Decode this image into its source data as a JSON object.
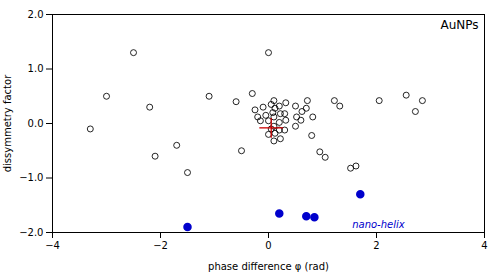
{
  "chart_data": {
    "type": "scatter",
    "title": "AuNPs",
    "x_label": "phase difference φ (rad)",
    "y_label": "dissymmetry factor",
    "xlim": [
      -4,
      4
    ],
    "ylim": [
      -2,
      2
    ],
    "xticks": [
      -4,
      -2,
      0,
      2,
      4
    ],
    "yticks": [
      -2,
      -1,
      0,
      1,
      2
    ],
    "grid": false,
    "series": [
      {
        "color": "#000000",
        "marker": "circle_open",
        "x": [
          -3.3,
          -3.0,
          -2.5,
          -2.2,
          -2.1,
          -1.7,
          -1.5,
          -1.1,
          -0.6,
          -0.5,
          -0.3,
          -0.25,
          -0.2,
          -0.15,
          -0.1,
          -0.05,
          0.0,
          0.0,
          0.05,
          0.08,
          0.05,
          0.0,
          0.1,
          0.12,
          0.1,
          0.1,
          0.12,
          0.1,
          0.2,
          0.22,
          0.2,
          0.2,
          0.22,
          0.32,
          0.3,
          0.32,
          0.3,
          0.5,
          0.52,
          0.5,
          0.62,
          0.6,
          0.72,
          0.7,
          0.82,
          0.8,
          0.95,
          1.05,
          1.22,
          1.32,
          1.52,
          1.62,
          2.05,
          2.55,
          2.72,
          2.85
        ],
        "y": [
          -0.1,
          0.5,
          1.3,
          0.3,
          -0.6,
          -0.4,
          -0.9,
          0.5,
          0.4,
          -0.5,
          0.55,
          0.25,
          0.12,
          0.05,
          0.3,
          0.15,
          0.05,
          1.3,
          0.35,
          0.2,
          -0.1,
          -0.2,
          0.42,
          0.28,
          0.12,
          -0.05,
          -0.18,
          -0.32,
          0.32,
          0.18,
          0.02,
          -0.12,
          -0.28,
          0.38,
          0.18,
          0.06,
          -0.12,
          0.32,
          0.12,
          -0.05,
          0.22,
          0.06,
          0.42,
          0.28,
          0.12,
          -0.22,
          -0.52,
          -0.62,
          0.42,
          0.32,
          -0.82,
          -0.78,
          0.42,
          0.52,
          0.22,
          0.42
        ]
      },
      {
        "color": "#0000cc",
        "marker": "circle",
        "x": [
          -1.5,
          0.2,
          0.7,
          0.85,
          1.7
        ],
        "y": [
          -1.9,
          -1.65,
          -1.7,
          -1.72,
          -1.3
        ]
      },
      {
        "color": "#cc0000",
        "marker": "plus",
        "x": [
          0.05
        ],
        "y": [
          -0.08
        ],
        "xerr": [
          0.22
        ],
        "yerr": [
          0.18
        ]
      }
    ],
    "annotations": [
      {
        "text": "nano-helix",
        "x": 1.55,
        "y": -1.85,
        "color": "#0000cc"
      }
    ]
  }
}
